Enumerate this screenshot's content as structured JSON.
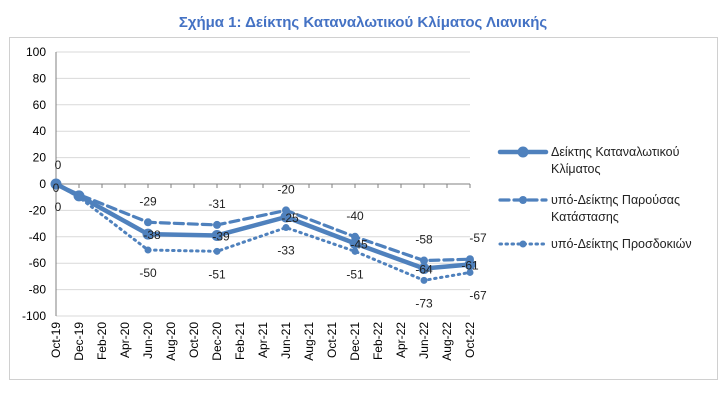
{
  "title": "Σχήμα 1: Δείκτης Καταναλωτικού Κλίματος Λιανικής",
  "colors": {
    "title": "#4472C4",
    "series": "#4F81BD",
    "grid": "#d9d9d9",
    "axis": "#808080"
  },
  "chart_data": {
    "type": "line",
    "title": "Σχήμα 1: Δείκτης Καταναλωτικού Κλίματος Λιανικής",
    "ylim": [
      -100,
      100
    ],
    "yticks": [
      "100",
      "80",
      "60",
      "40",
      "20",
      "0",
      "-20",
      "-40",
      "-60",
      "-80",
      "-100"
    ],
    "grid": true,
    "legend_position": "right",
    "categories": [
      "Oct-19",
      "Dec-19",
      "Feb-20",
      "Apr-20",
      "Jun-20",
      "Aug-20",
      "Oct-20",
      "Dec-20",
      "Feb-21",
      "Apr-21",
      "Jun-21",
      "Aug-21",
      "Oct-21",
      "Dec-21",
      "Feb-22",
      "Apr-22",
      "Jun-22",
      "Aug-22",
      "Oct-22"
    ],
    "series": [
      {
        "name": "Δείκτης Καταναλωτικού Κλίματος",
        "style": "solid",
        "points": [
          {
            "x": "Oct-19",
            "y": 0,
            "label": "0"
          },
          {
            "x": "Dec-19",
            "y": -9
          },
          {
            "x": "Jun-20",
            "y": -38,
            "label": "-38"
          },
          {
            "x": "Dec-20",
            "y": -39,
            "label": "-39"
          },
          {
            "x": "Jun-21",
            "y": -25,
            "label": "-25"
          },
          {
            "x": "Dec-21",
            "y": -45,
            "label": "-45"
          },
          {
            "x": "Jun-22",
            "y": -64,
            "label": "-64"
          },
          {
            "x": "Oct-22",
            "y": -61,
            "label": "-61"
          }
        ]
      },
      {
        "name": "υπό-Δείκτης Παρούσας Κατάστασης",
        "style": "dashed",
        "points": [
          {
            "x": "Oct-19",
            "y": 0,
            "label": "0"
          },
          {
            "x": "Dec-19",
            "y": -8
          },
          {
            "x": "Jun-20",
            "y": -29,
            "label": "-29"
          },
          {
            "x": "Dec-20",
            "y": -31,
            "label": "-31"
          },
          {
            "x": "Jun-21",
            "y": -20,
            "label": "-20"
          },
          {
            "x": "Dec-21",
            "y": -40,
            "label": "-40"
          },
          {
            "x": "Jun-22",
            "y": -58,
            "label": "-58"
          },
          {
            "x": "Oct-22",
            "y": -57,
            "label": "-57"
          }
        ]
      },
      {
        "name": "υπό-Δείκτης Προσδοκιών",
        "style": "dotted",
        "points": [
          {
            "x": "Oct-19",
            "y": 0,
            "label": "0"
          },
          {
            "x": "Dec-19",
            "y": -10
          },
          {
            "x": "Jun-20",
            "y": -50,
            "label": "-50"
          },
          {
            "x": "Dec-20",
            "y": -51,
            "label": "-51"
          },
          {
            "x": "Jun-21",
            "y": -33,
            "label": "-33"
          },
          {
            "x": "Dec-21",
            "y": -51,
            "label": "-51"
          },
          {
            "x": "Jun-22",
            "y": -73,
            "label": "-73"
          },
          {
            "x": "Oct-22",
            "y": -67,
            "label": "-67"
          }
        ]
      }
    ]
  }
}
